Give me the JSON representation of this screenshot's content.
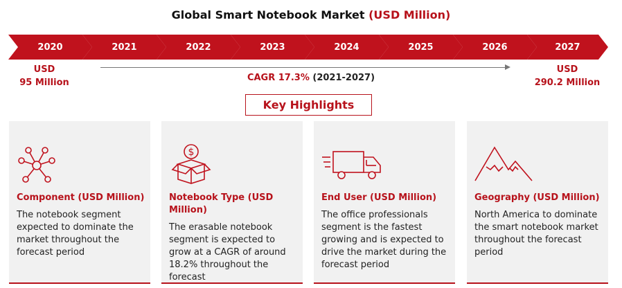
{
  "title": {
    "main": "Global Smart Notebook Market",
    "accent": "(USD Million)"
  },
  "timeline": {
    "years": [
      "2020",
      "2021",
      "2022",
      "2023",
      "2024",
      "2025",
      "2026",
      "2027"
    ]
  },
  "start_value": {
    "line1": "USD",
    "line2": "95 Million"
  },
  "end_value": {
    "line1": "USD",
    "line2": "290.2 Million"
  },
  "cagr": {
    "label": "CAGR 17.3%",
    "period": "(2021-2027)"
  },
  "key_highlights": "Key Highlights",
  "cards": [
    {
      "icon": "network-nodes-icon",
      "title": "Component (USD Million)",
      "text": "The notebook segment expected to dominate the market throughout the forecast period"
    },
    {
      "icon": "dollar-box-icon",
      "title": "Notebook Type (USD Million)",
      "text": "The erasable notebook segment is expected to grow at a CAGR of around 18.2% throughout the forecast"
    },
    {
      "icon": "delivery-truck-icon",
      "title": "End User (USD Million)",
      "text": "The office professionals segment is the fastest growing and is expected to drive the market during the forecast period"
    },
    {
      "icon": "mountain-icon",
      "title": "Geography (USD Million)",
      "text": "North America to dominate the smart notebook market throughout the forecast period"
    }
  ],
  "colors": {
    "accent": "#c0121d",
    "card_bg": "#f1f1f1"
  }
}
